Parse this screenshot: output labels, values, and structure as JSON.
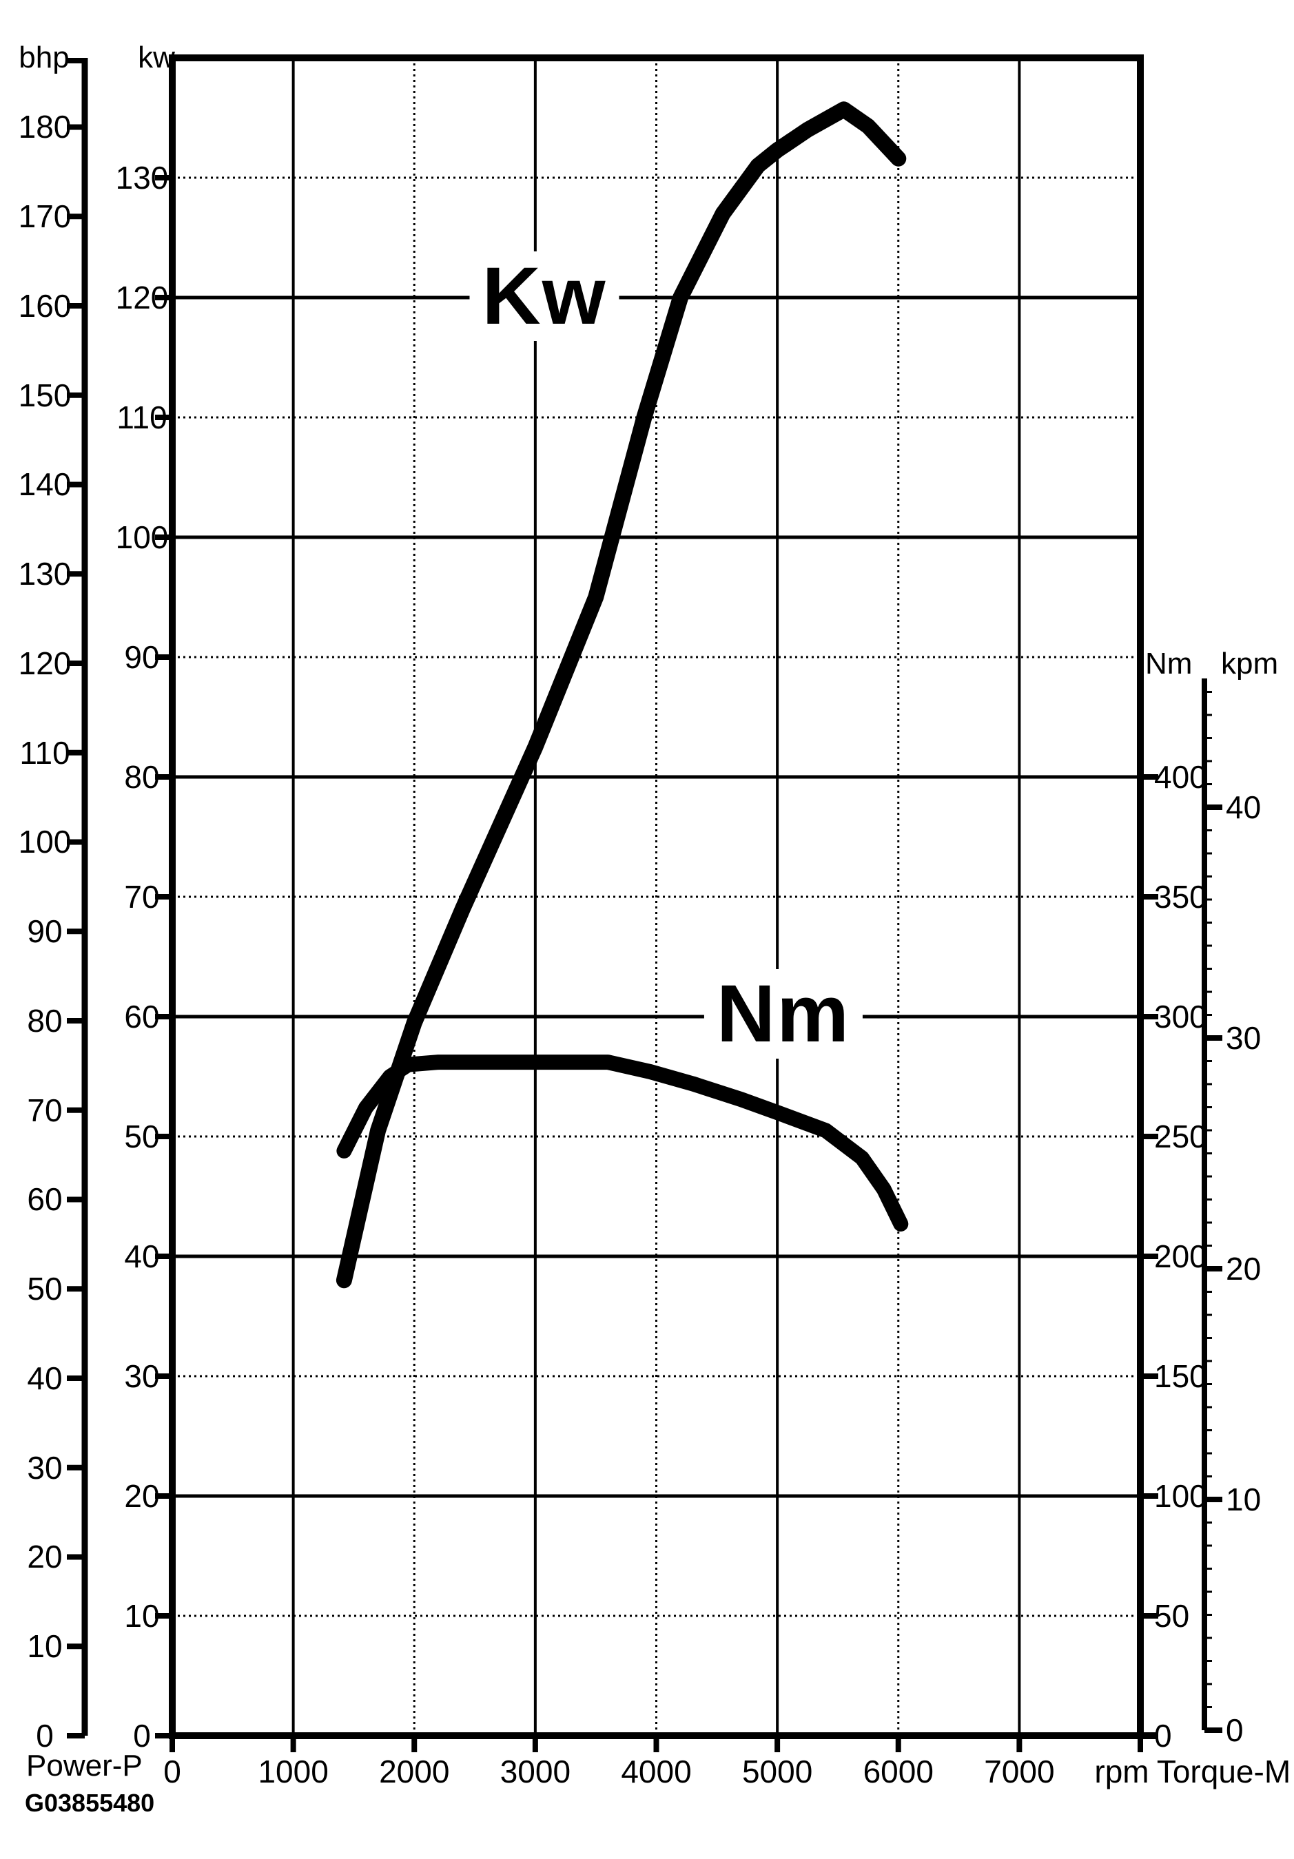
{
  "labels": {
    "power_curve": "Kw",
    "torque_curve": "Nm",
    "bhp_axis": "bhp",
    "kw_axis": "kw",
    "nm_axis": "Nm",
    "kpm_axis": "kpm",
    "rpm_axis": "rpm",
    "power_footer": "Power-P",
    "torque_footer": "Torque-M",
    "figure_code": "G03855480"
  },
  "chart_data": {
    "type": "line",
    "title": "Engine power and torque vs engine speed",
    "grid": "on",
    "x_axis": {
      "label": "rpm",
      "min": 0,
      "max": 8000,
      "tick_step": 1000,
      "ticks": [
        0,
        1000,
        2000,
        3000,
        4000,
        5000,
        6000,
        7000
      ]
    },
    "y_axes": [
      {
        "id": "kw",
        "label": "kw",
        "side": "left",
        "min": 0,
        "max": 140,
        "ticks": [
          0,
          10,
          20,
          30,
          40,
          50,
          60,
          70,
          80,
          90,
          100,
          110,
          120,
          130
        ]
      },
      {
        "id": "bhp",
        "label": "bhp",
        "side": "far-left",
        "min": 0,
        "max": 188,
        "ticks": [
          0,
          10,
          20,
          30,
          40,
          50,
          60,
          70,
          80,
          90,
          100,
          110,
          120,
          130,
          140,
          150,
          160,
          170,
          180
        ]
      },
      {
        "id": "nm",
        "label": "Nm",
        "side": "right",
        "min": 0,
        "max": 437,
        "ticks": [
          0,
          50,
          100,
          150,
          200,
          250,
          300,
          350,
          400
        ]
      },
      {
        "id": "kpm",
        "label": "kpm",
        "side": "far-right",
        "min": 0,
        "max": 45,
        "ticks": [
          0,
          10,
          20,
          30,
          40
        ],
        "minor_tick_step": 1
      }
    ],
    "series": [
      {
        "name": "Kw",
        "unit": "kW",
        "axis": "kw",
        "x": [
          1420,
          1700,
          2000,
          2400,
          3000,
          3500,
          3900,
          4200,
          4550,
          4840,
          5000,
          5250,
          5550,
          5750,
          6000
        ],
        "values": [
          38,
          50.5,
          59.5,
          69,
          82.5,
          95,
          110,
          120,
          127,
          131,
          132.3,
          134,
          135.7,
          134.3,
          131.6
        ]
      },
      {
        "name": "Nm",
        "unit": "Nm",
        "axis": "nm",
        "x": [
          1420,
          1600,
          1800,
          1950,
          2200,
          3000,
          3600,
          3950,
          4300,
          4700,
          5000,
          5400,
          5700,
          5880,
          6020
        ],
        "values": [
          244,
          262,
          275,
          280,
          281,
          281,
          281,
          277,
          272,
          265.5,
          260,
          252.5,
          241,
          228,
          213.5
        ]
      }
    ],
    "annotations": [
      {
        "text": "Kw",
        "series": "Kw",
        "at_rpm": 3000
      },
      {
        "text": "Nm",
        "series": "Nm",
        "at_rpm": 4600
      }
    ],
    "footer_code": "G03855480"
  }
}
